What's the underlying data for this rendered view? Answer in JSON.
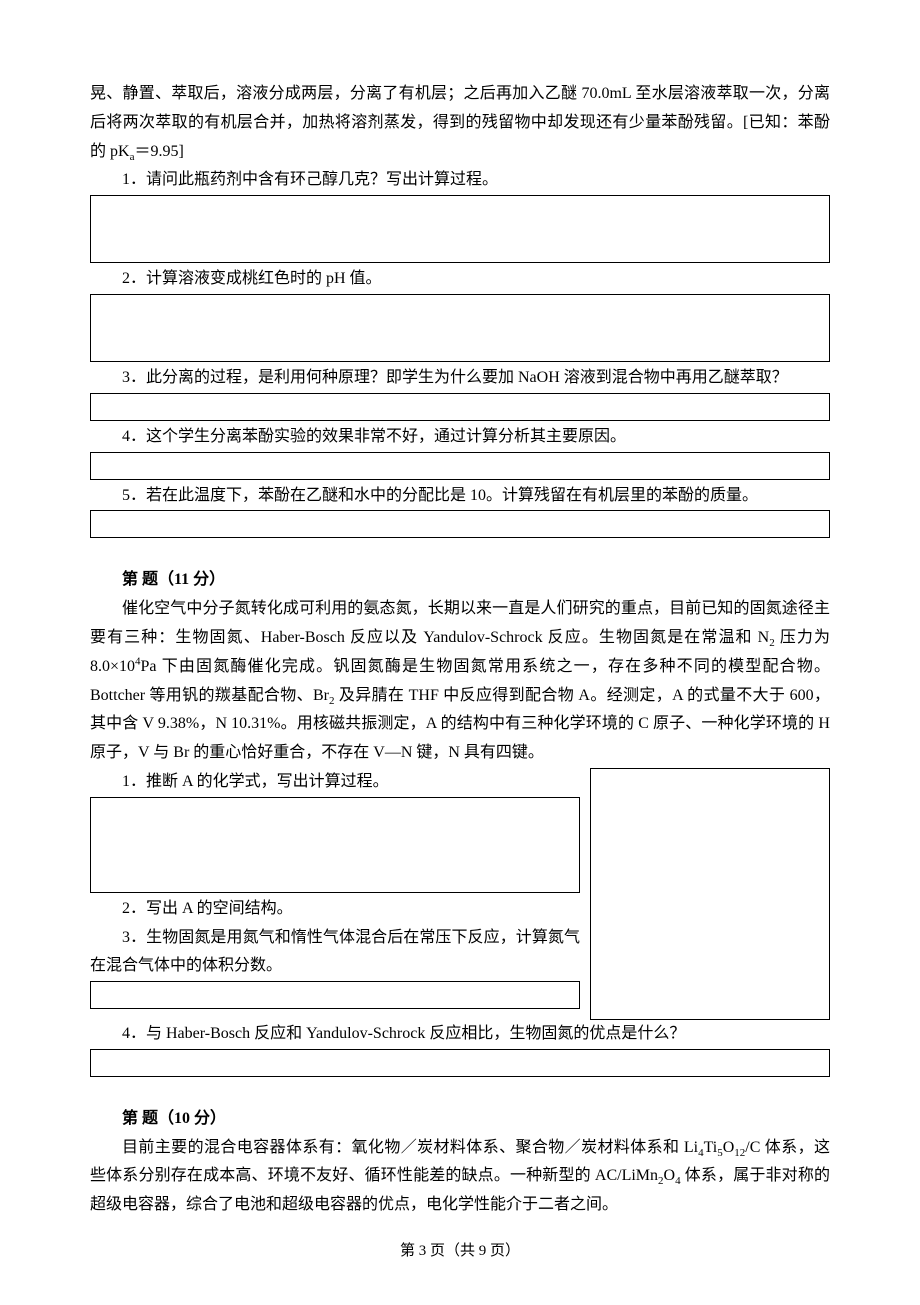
{
  "intro": {
    "line1": "晃、静置、萃取后，溶液分成两层，分离了有机层；之后再加入乙醚 70.0mL 至水层溶液萃取一次，分离后将两次萃取的有机层合并，加热将溶剂蒸发，得到的残留物中却发现还有少量苯酚残留。[已知：苯酚的 pK",
    "line1_sub": "a",
    "line1_end": "＝9.95]"
  },
  "q1": "1．请问此瓶药剂中含有环己醇几克？写出计算过程。",
  "q2": "2．计算溶液变成桃红色时的 pH 值。",
  "q3": "3．此分离的过程，是利用何种原理？即学生为什么要加 NaOH 溶液到混合物中再用乙醚萃取？",
  "q4": "4．这个学生分离苯酚实验的效果非常不好，通过计算分析其主要原因。",
  "q5": "5．若在此温度下，苯酚在乙醚和水中的分配比是 10。计算残留在有机层里的苯酚的质量。",
  "sectionA": {
    "title": "第  题（11 分）",
    "p1": "催化空气中分子氮转化成可利用的氨态氮，长期以来一直是人们研究的重点，目前已知的固氮途径主要有三种：生物固氮、Haber-Bosch 反应以及 Yandulov-Schrock 反应。生物固氮是在常温和 N",
    "p1_sub1": "2",
    "p1_mid1": " 压力为 8.0×10",
    "p1_sup": "4",
    "p1_mid2": "Pa 下由固氮酶催化完成。钒固氮酶是生物固氮常用系统之一，存在多种不同的模型配合物。Bottcher 等用钒的羰基配合物、Br",
    "p1_sub2": "2",
    "p1_mid3": " 及异腈在 THF 中反应得到配合物 A。经测定，A 的式量不大于 600，其中含 V 9.38%，N 10.31%。用核磁共振测定，A 的结构中有三种化学环境的 C 原子、一种化学环境的 H 原子，V 与 Br 的重心恰好重合，不存在 V—N 键，N 具有四键。",
    "s1": "1．推断 A 的化学式，写出计算过程。",
    "s2": "2．写出 A 的空间结构。",
    "s3": "3．生物固氮是用氮气和惰性气体混合后在常压下反应，计算氮气在混合气体中的体积分数。",
    "s4": "4．与 Haber-Bosch 反应和 Yandulov-Schrock 反应相比，生物固氮的优点是什么？"
  },
  "sectionB": {
    "title": "第  题（10 分）",
    "p1a": "目前主要的混合电容器体系有：氧化物／炭材料体系、聚合物／炭材料体系和 Li",
    "sub1": "4",
    "p1b": "Ti",
    "sub2": "5",
    "p1c": "O",
    "sub3": "12",
    "p1d": "/C 体系，这些体系分别存在成本高、环境不友好、循环性能差的缺点。一种新型的 AC/LiMn",
    "sub4": "2",
    "p1e": "O",
    "sub5": "4",
    "p1f": " 体系，属于非对称的超级电容器，综合了电池和超级电容器的优点，电化学性能介于二者之间。"
  },
  "footer": "第 3 页（共 9 页）"
}
